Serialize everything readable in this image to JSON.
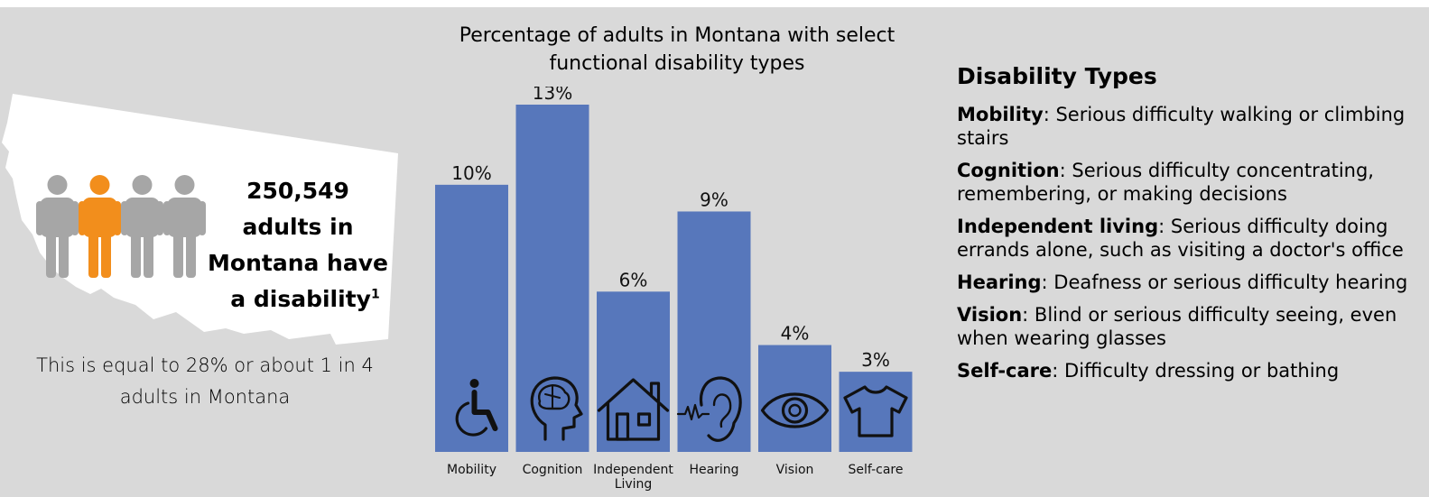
{
  "colors": {
    "background": "#d9d9d9",
    "bar": "#5777bb",
    "person_gray": "#a6a6a6",
    "person_highlight": "#f28e1c",
    "state_fill": "#ffffff"
  },
  "left": {
    "people_icons": [
      "person-icon",
      "person-icon",
      "person-icon",
      "person-icon"
    ],
    "highlighted_person_index": 1,
    "headline_lines": [
      "250,549",
      "adults in",
      "Montana have",
      "a disability"
    ],
    "footnote_marker": "1",
    "subtext": "This is equal to 28% or about 1 in 4 adults in Montana"
  },
  "chart_data": {
    "type": "bar",
    "title": "Percentage of adults in Montana with select functional disability types",
    "categories": [
      "Mobility",
      "Cognition",
      "Independent Living",
      "Hearing",
      "Vision",
      "Self-care"
    ],
    "values": [
      10,
      13,
      6,
      9,
      4,
      3
    ],
    "value_labels": [
      "10%",
      "13%",
      "6%",
      "9%",
      "4%",
      "3%"
    ],
    "icons": [
      "wheelchair-icon",
      "brain-head-icon",
      "house-icon",
      "ear-icon",
      "eye-icon",
      "shirt-icon"
    ],
    "ylim": [
      0,
      13
    ],
    "grid": false,
    "xlabel": "",
    "ylabel": ""
  },
  "types": {
    "title": "Disability Types",
    "items": [
      {
        "term": "Mobility",
        "desc": ": Serious difficulty walking or climbing stairs"
      },
      {
        "term": "Cognition",
        "desc": ": Serious difficulty concentrating, remembering, or making decisions"
      },
      {
        "term": "Independent living",
        "desc": ": Serious difficulty doing errands alone, such as visiting a doctor's office"
      },
      {
        "term": "Hearing",
        "desc": ": Deafness or serious difficulty hearing"
      },
      {
        "term": "Vision",
        "desc": ": Blind or serious difficulty seeing, even when wearing glasses"
      },
      {
        "term": "Self-care",
        "desc": ": Difficulty dressing or bathing"
      }
    ]
  }
}
